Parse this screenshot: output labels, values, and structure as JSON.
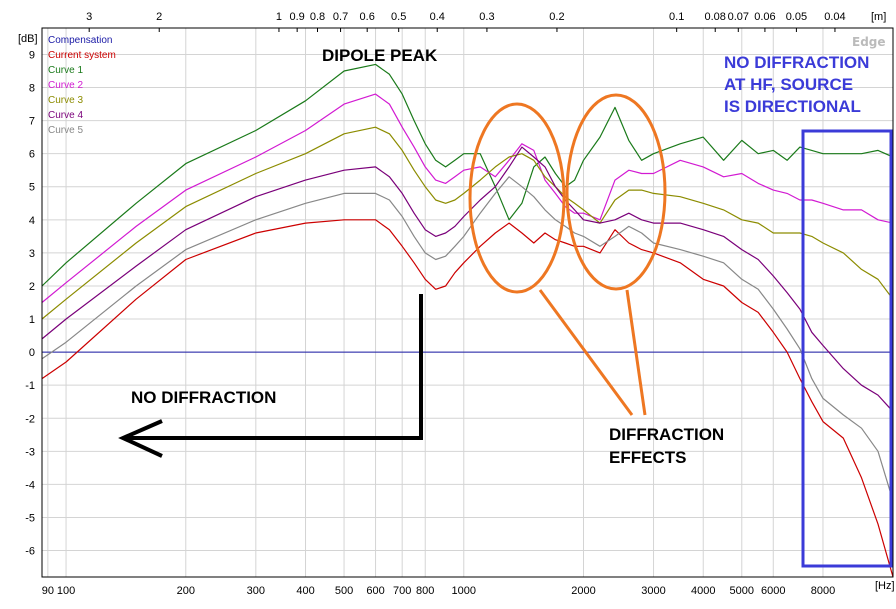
{
  "chart_data": {
    "type": "line",
    "watermark": "Edge",
    "xlabel": "",
    "ylabel": "",
    "x_unit": "[Hz]",
    "top_unit": "[m]",
    "y_unit": "[dB]",
    "xscale": "log",
    "xlim": [
      87,
      12000
    ],
    "ylim": [
      -6.8,
      9.8
    ],
    "grid": true,
    "x_ticks": [
      {
        "v": 90,
        "label": "90"
      },
      {
        "v": 100,
        "label": "100"
      },
      {
        "v": 200,
        "label": "200"
      },
      {
        "v": 300,
        "label": "300"
      },
      {
        "v": 400,
        "label": "400"
      },
      {
        "v": 500,
        "label": "500"
      },
      {
        "v": 600,
        "label": "600"
      },
      {
        "v": 700,
        "label": "700"
      },
      {
        "v": 800,
        "label": "800"
      },
      {
        "v": 1000,
        "label": "1000"
      },
      {
        "v": 2000,
        "label": "2000"
      },
      {
        "v": 3000,
        "label": "3000"
      },
      {
        "v": 4000,
        "label": "4000"
      },
      {
        "v": 5000,
        "label": "5000"
      },
      {
        "v": 6000,
        "label": "6000"
      },
      {
        "v": 8000,
        "label": "8000"
      }
    ],
    "top_ticks": [
      {
        "m": 3,
        "label": "3"
      },
      {
        "m": 2,
        "label": "2"
      },
      {
        "m": 1,
        "label": "1"
      },
      {
        "m": 0.9,
        "label": "0.9"
      },
      {
        "m": 0.8,
        "label": "0.8"
      },
      {
        "m": 0.7,
        "label": "0.7"
      },
      {
        "m": 0.6,
        "label": "0.6"
      },
      {
        "m": 0.5,
        "label": "0.5"
      },
      {
        "m": 0.4,
        "label": "0.4"
      },
      {
        "m": 0.3,
        "label": "0.3"
      },
      {
        "m": 0.2,
        "label": "0.2"
      },
      {
        "m": 0.1,
        "label": "0.1"
      },
      {
        "m": 0.08,
        "label": "0.08"
      },
      {
        "m": 0.07,
        "label": "0.07"
      },
      {
        "m": 0.06,
        "label": "0.06"
      },
      {
        "m": 0.05,
        "label": "0.05"
      },
      {
        "m": 0.04,
        "label": "0.04"
      }
    ],
    "y_ticks": [
      9,
      8,
      7,
      6,
      5,
      4,
      3,
      2,
      1,
      0,
      -1,
      -2,
      -3,
      -4,
      -5,
      -6
    ],
    "legend": [
      {
        "label": "Compensation",
        "color": "#1a1aa6"
      },
      {
        "label": "Current system",
        "color": "#cc0000"
      },
      {
        "label": "Curve 1",
        "color": "#1a7a1a"
      },
      {
        "label": "Curve 2",
        "color": "#d21ad2"
      },
      {
        "label": "Curve 3",
        "color": "#8c8c00"
      },
      {
        "label": "Curve 4",
        "color": "#7a007a"
      },
      {
        "label": "Curve 5",
        "color": "#888888"
      }
    ],
    "series": [
      {
        "name": "Compensation",
        "color": "#1a1aa6",
        "x": [
          87,
          12000
        ],
        "y": [
          0,
          0
        ]
      },
      {
        "name": "Current system",
        "color": "#cc0000",
        "x": [
          87,
          100,
          150,
          200,
          300,
          400,
          500,
          600,
          650,
          700,
          750,
          800,
          850,
          900,
          950,
          1000,
          1100,
          1200,
          1300,
          1400,
          1500,
          1600,
          1700,
          1800,
          1900,
          2000,
          2200,
          2400,
          2600,
          2800,
          3000,
          3500,
          4000,
          4500,
          5000,
          5500,
          6000,
          6500,
          7000,
          7500,
          8000,
          9000,
          10000,
          11000,
          12000
        ],
        "y": [
          -0.8,
          -0.3,
          1.6,
          2.8,
          3.6,
          3.9,
          4.0,
          4.0,
          3.7,
          3.2,
          2.7,
          2.2,
          1.9,
          2.0,
          2.4,
          2.7,
          3.2,
          3.6,
          3.9,
          3.6,
          3.3,
          3.6,
          3.4,
          3.3,
          3.2,
          3.2,
          3.0,
          3.7,
          3.3,
          3.1,
          3.0,
          2.7,
          2.2,
          2.0,
          1.5,
          1.2,
          0.6,
          0.0,
          -0.8,
          -1.5,
          -2.1,
          -2.6,
          -3.8,
          -5.2,
          -6.8
        ]
      },
      {
        "name": "Curve 1",
        "color": "#1a7a1a",
        "x": [
          87,
          100,
          150,
          200,
          300,
          400,
          500,
          600,
          650,
          700,
          750,
          800,
          850,
          900,
          950,
          1000,
          1100,
          1200,
          1300,
          1400,
          1500,
          1600,
          1700,
          1800,
          1900,
          2000,
          2200,
          2400,
          2600,
          2800,
          3000,
          3500,
          4000,
          4500,
          5000,
          5500,
          6000,
          6500,
          7000,
          7500,
          8000,
          9000,
          10000,
          11000,
          12000
        ],
        "y": [
          2.0,
          2.7,
          4.5,
          5.7,
          6.7,
          7.6,
          8.5,
          8.7,
          8.4,
          7.8,
          7.0,
          6.3,
          5.8,
          5.6,
          5.8,
          6.0,
          6.0,
          5.0,
          4.0,
          4.5,
          5.6,
          5.9,
          5.4,
          5.0,
          5.2,
          5.8,
          6.5,
          7.4,
          6.4,
          5.8,
          6.0,
          6.3,
          6.5,
          5.8,
          6.4,
          6.0,
          6.1,
          5.8,
          6.2,
          6.1,
          6.0,
          6.0,
          6.0,
          6.1,
          5.9
        ]
      },
      {
        "name": "Curve 2",
        "color": "#d21ad2",
        "x": [
          87,
          100,
          150,
          200,
          300,
          400,
          500,
          600,
          650,
          700,
          750,
          800,
          850,
          900,
          950,
          1000,
          1100,
          1200,
          1300,
          1400,
          1500,
          1600,
          1700,
          1800,
          1900,
          2000,
          2200,
          2400,
          2600,
          2800,
          3000,
          3500,
          4000,
          4500,
          5000,
          5500,
          6000,
          6500,
          7000,
          7500,
          8000,
          9000,
          10000,
          11000,
          12000
        ],
        "y": [
          1.5,
          2.1,
          3.8,
          4.9,
          5.9,
          6.7,
          7.5,
          7.8,
          7.5,
          6.8,
          6.2,
          5.6,
          5.2,
          5.1,
          5.3,
          5.5,
          5.6,
          5.3,
          5.8,
          6.3,
          6.1,
          5.2,
          4.8,
          4.4,
          4.2,
          4.2,
          4.0,
          5.2,
          5.5,
          5.4,
          5.4,
          5.8,
          5.6,
          5.3,
          5.4,
          5.1,
          4.9,
          4.8,
          4.6,
          4.6,
          4.5,
          4.3,
          4.3,
          4.0,
          3.9
        ]
      },
      {
        "name": "Curve 3",
        "color": "#8c8c00",
        "x": [
          87,
          100,
          150,
          200,
          300,
          400,
          500,
          600,
          650,
          700,
          750,
          800,
          850,
          900,
          950,
          1000,
          1100,
          1200,
          1300,
          1400,
          1500,
          1600,
          1700,
          1800,
          1900,
          2000,
          2200,
          2400,
          2600,
          2800,
          3000,
          3500,
          4000,
          4500,
          5000,
          5500,
          6000,
          6500,
          7000,
          7500,
          8000,
          9000,
          10000,
          11000,
          12000
        ],
        "y": [
          1.0,
          1.6,
          3.3,
          4.4,
          5.4,
          6.0,
          6.6,
          6.8,
          6.6,
          6.1,
          5.5,
          5.0,
          4.6,
          4.5,
          4.6,
          4.8,
          5.2,
          5.6,
          5.9,
          6.0,
          5.8,
          5.3,
          5.0,
          4.7,
          4.5,
          4.3,
          3.9,
          4.6,
          4.9,
          4.9,
          4.8,
          4.7,
          4.5,
          4.3,
          4.0,
          3.9,
          3.6,
          3.6,
          3.6,
          3.5,
          3.3,
          3.0,
          2.5,
          2.2,
          1.6
        ]
      },
      {
        "name": "Curve 4",
        "color": "#7a007a",
        "x": [
          87,
          100,
          150,
          200,
          300,
          400,
          500,
          600,
          650,
          700,
          750,
          800,
          850,
          900,
          950,
          1000,
          1100,
          1200,
          1300,
          1400,
          1500,
          1600,
          1700,
          1800,
          1900,
          2000,
          2200,
          2400,
          2600,
          2800,
          3000,
          3500,
          4000,
          4500,
          5000,
          5500,
          6000,
          6500,
          7000,
          7500,
          8000,
          9000,
          10000,
          11000,
          12000
        ],
        "y": [
          0.4,
          1.0,
          2.6,
          3.7,
          4.7,
          5.2,
          5.5,
          5.6,
          5.3,
          4.8,
          4.2,
          3.7,
          3.5,
          3.6,
          3.8,
          4.1,
          4.6,
          5.0,
          5.6,
          6.2,
          5.9,
          5.6,
          5.0,
          4.6,
          4.3,
          4.0,
          3.9,
          4.0,
          4.2,
          4.0,
          3.9,
          3.9,
          3.7,
          3.5,
          3.1,
          2.8,
          2.3,
          1.8,
          1.3,
          0.6,
          0.2,
          -0.5,
          -1.0,
          -1.3,
          -1.8
        ]
      },
      {
        "name": "Curve 5",
        "color": "#888888",
        "x": [
          87,
          100,
          150,
          200,
          300,
          400,
          500,
          600,
          650,
          700,
          750,
          800,
          850,
          900,
          950,
          1000,
          1100,
          1200,
          1300,
          1400,
          1500,
          1600,
          1700,
          1800,
          1900,
          2000,
          2200,
          2400,
          2600,
          2800,
          3000,
          3500,
          4000,
          4500,
          5000,
          5500,
          6000,
          6500,
          7000,
          7500,
          8000,
          9000,
          10000,
          11000,
          12000
        ],
        "y": [
          -0.2,
          0.3,
          2.0,
          3.1,
          4.0,
          4.5,
          4.8,
          4.8,
          4.6,
          4.1,
          3.5,
          3.0,
          2.8,
          2.9,
          3.2,
          3.5,
          4.2,
          4.8,
          5.3,
          5.0,
          4.7,
          4.3,
          4.0,
          3.8,
          3.6,
          3.5,
          3.2,
          3.5,
          3.8,
          3.6,
          3.3,
          3.1,
          2.9,
          2.7,
          2.2,
          1.9,
          1.3,
          0.7,
          0.1,
          -0.8,
          -1.4,
          -1.9,
          -2.3,
          -3.0,
          -4.5
        ]
      }
    ],
    "annotations": [
      {
        "text": "DIPOLE PEAK",
        "color": "#000000"
      },
      {
        "text": "NO DIFFRACTION",
        "color": "#000000"
      },
      {
        "text": "DIFFRACTION",
        "color": "#000000"
      },
      {
        "text": "EFFECTS",
        "color": "#000000"
      },
      {
        "text": "NO DIFFRACTION",
        "color": "#3b3bd8"
      },
      {
        "text": "AT HF, SOURCE",
        "color": "#3b3bd8"
      },
      {
        "text": "IS DIRECTIONAL",
        "color": "#3b3bd8"
      }
    ],
    "highlight_color": "#ee7722",
    "hf_box_color": "#3b3bd8",
    "arrow_color": "#000000"
  }
}
